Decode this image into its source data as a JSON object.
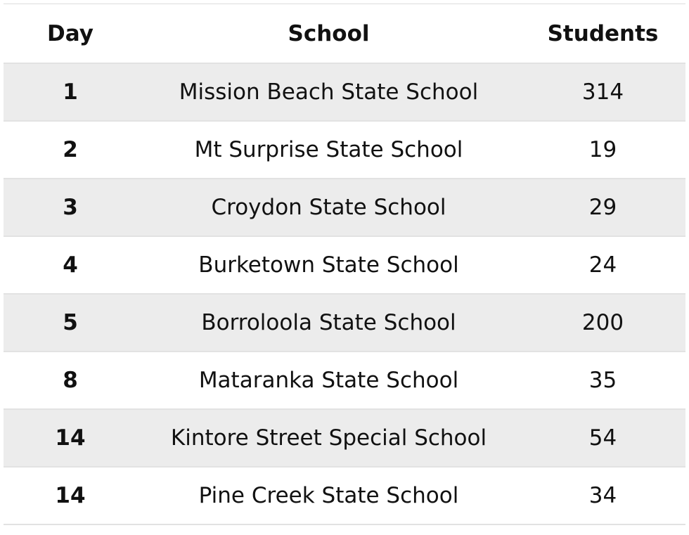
{
  "table": {
    "header": [
      "Day",
      "School",
      "Students"
    ],
    "rows": [
      [
        1,
        "Mission Beach State School",
        314
      ],
      [
        2,
        "Mt Surprise State School",
        19
      ],
      [
        3,
        "Croydon State School",
        29
      ],
      [
        4,
        "Burketown State School",
        24
      ],
      [
        5,
        "Borroloola State School",
        200
      ],
      [
        8,
        "Mataranka State School",
        35
      ],
      [
        14,
        "Kintore Street Special School",
        54
      ],
      [
        14,
        "Pine Creek State School",
        34
      ]
    ]
  }
}
